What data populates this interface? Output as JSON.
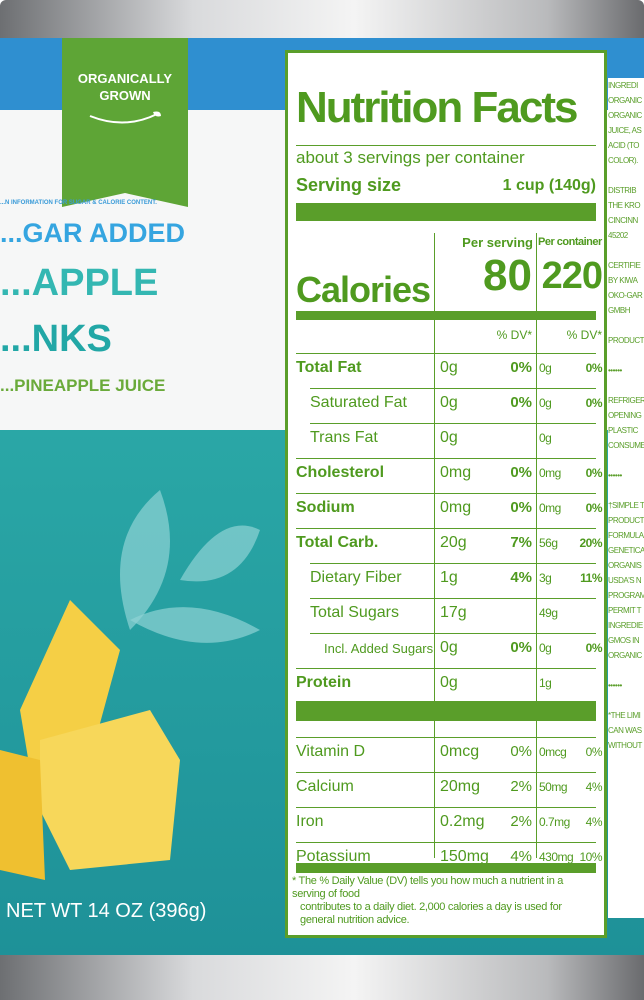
{
  "brand_flag": {
    "line1": "ORGANICALLY",
    "line2": "GROWN"
  },
  "front": {
    "fine_print": "...N INFORMATION FOR SUGAR & CALORIE CONTENT.",
    "claim": "...GAR ADDED",
    "name1": "...APPLE",
    "name2": "...NKS",
    "sub": "...PINEAPPLE JUICE",
    "net_wt": "NET WT 14 OZ (396g)"
  },
  "nutrition": {
    "title": "Nutrition Facts",
    "servings": "about 3 servings per container",
    "serving_size_label": "Serving size",
    "serving_size": "1 cup (140g)",
    "per_serving": "Per serving",
    "per_container": "Per container",
    "calories_label": "Calories",
    "calories_serving": "80",
    "calories_container": "220",
    "dv_label": "% DV*",
    "rows": [
      {
        "label": "Total Fat",
        "bold": true,
        "s": "0g",
        "sdv": "0%",
        "c": "0g",
        "cdv": "0%"
      },
      {
        "label": "Saturated Fat",
        "indent": 1,
        "s": "0g",
        "sdv": "0%",
        "c": "0g",
        "cdv": "0%"
      },
      {
        "label": "Trans Fat",
        "indent": 1,
        "s": "0g",
        "sdv": "",
        "c": "0g",
        "cdv": ""
      },
      {
        "label": "Cholesterol",
        "bold": true,
        "s": "0mg",
        "sdv": "0%",
        "c": "0mg",
        "cdv": "0%"
      },
      {
        "label": "Sodium",
        "bold": true,
        "s": "0mg",
        "sdv": "0%",
        "c": "0mg",
        "cdv": "0%"
      },
      {
        "label": "Total Carb.",
        "bold": true,
        "s": "20g",
        "sdv": "7%",
        "c": "56g",
        "cdv": "20%"
      },
      {
        "label": "Dietary Fiber",
        "indent": 1,
        "s": "1g",
        "sdv": "4%",
        "c": "3g",
        "cdv": "11%"
      },
      {
        "label": "Total Sugars",
        "indent": 1,
        "s": "17g",
        "sdv": "",
        "c": "49g",
        "cdv": ""
      },
      {
        "label": "Incl. Added Sugars",
        "indent": 2,
        "s": "0g",
        "sdv": "0%",
        "c": "0g",
        "cdv": "0%"
      },
      {
        "label": "Protein",
        "bold": true,
        "s": "0g",
        "sdv": "",
        "c": "1g",
        "cdv": ""
      }
    ],
    "vitamins": [
      {
        "label": "Vitamin D",
        "s": "0mcg",
        "sdv": "0%",
        "c": "0mcg",
        "cdv": "0%"
      },
      {
        "label": "Calcium",
        "s": "20mg",
        "sdv": "2%",
        "c": "50mg",
        "cdv": "4%"
      },
      {
        "label": "Iron",
        "s": "0.2mg",
        "sdv": "2%",
        "c": "0.7mg",
        "cdv": "4%"
      },
      {
        "label": "Potassium",
        "s": "150mg",
        "sdv": "4%",
        "c": "430mg",
        "cdv": "10%"
      }
    ],
    "footnote1": "* The % Daily Value (DV) tells you how much a nutrient in a serving of food",
    "footnote2": "contributes to a daily diet. 2,000 calories a day is used for general nutrition advice."
  },
  "side_text": [
    "INGREDI",
    "ORGANIC",
    "ORGANIC",
    "JUICE, AS",
    "ACID (TO",
    "COLOR).",
    "",
    "DISTRIB",
    "THE KRO",
    "CINCINN",
    "45202",
    "",
    "CERTIFIE",
    "BY KIWA",
    "OKO-GAR",
    "GMBH",
    "",
    "PRODUCT",
    "",
    "••••••",
    "",
    "REFRIGER",
    "OPENING",
    "PLASTIC",
    "CONSUME",
    "",
    "••••••",
    "",
    "†SIMPLE T",
    "PRODUCT",
    "FORMULA",
    "GENETICA",
    "ORGANIS",
    "USDA'S N",
    "PROGRAM",
    "PERMIT T",
    "INGREDIE",
    "GMOS IN",
    "ORGANIC",
    "",
    "••••••",
    "",
    "*THE LIMI",
    "CAN WAS",
    "WITHOUT"
  ],
  "colors": {
    "green": "#4f9a1f",
    "blue": "#2f8fd0",
    "teal": "#2aa7a6"
  }
}
